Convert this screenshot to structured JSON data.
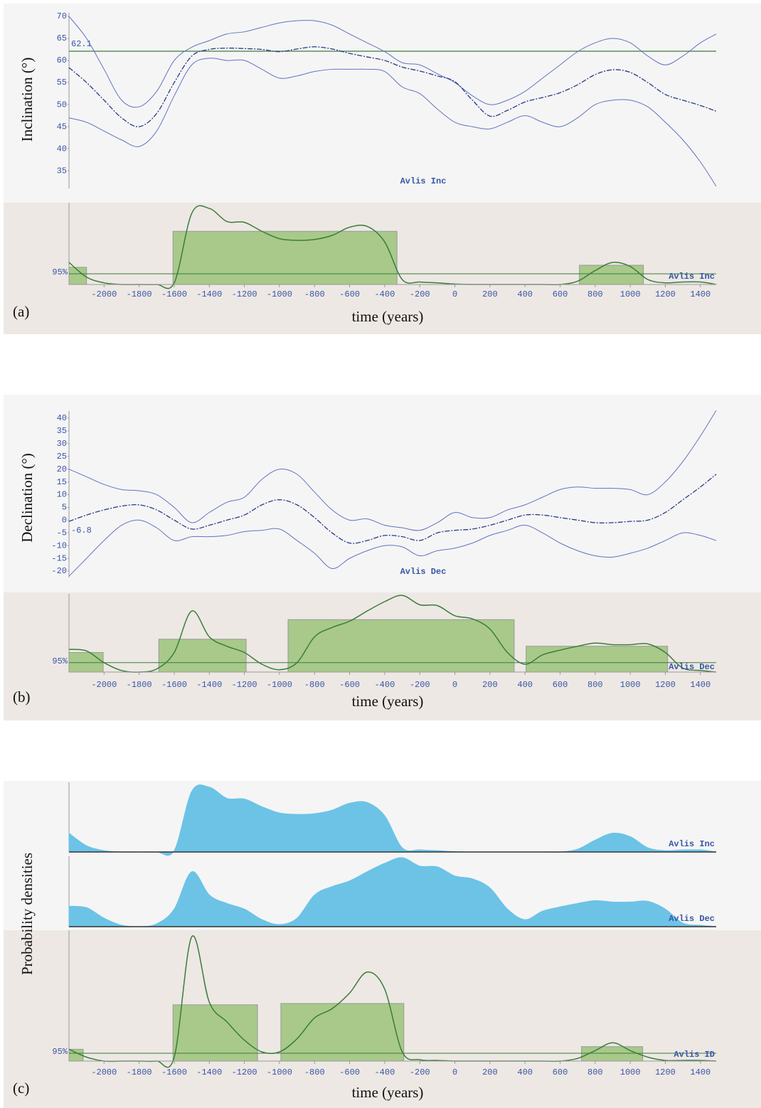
{
  "chart_data": [
    {
      "type": "line",
      "ylabel": "Inclination (°)",
      "xlim": [
        -2200,
        1490
      ],
      "ylim": [
        31,
        70.8
      ],
      "yticks": [
        35,
        40,
        45,
        50,
        55,
        60,
        65,
        70
      ],
      "reference": 62.1,
      "show_reference_line": true,
      "curve_label": "Avlis Inc",
      "x": [
        -2200,
        -2100,
        -2000,
        -1900,
        -1800,
        -1700,
        -1600,
        -1500,
        -1400,
        -1300,
        -1200,
        -1100,
        -1000,
        -900,
        -800,
        -700,
        -600,
        -500,
        -400,
        -300,
        -200,
        -100,
        0,
        100,
        200,
        300,
        400,
        500,
        600,
        700,
        800,
        900,
        1000,
        1100,
        1200,
        1300,
        1400,
        1490
      ],
      "series": [
        {
          "color": "#6272c4",
          "values": [
            70,
            65,
            58,
            51,
            49.5,
            53,
            60,
            63,
            64.5,
            66,
            66.5,
            67.5,
            68.5,
            69,
            69,
            68,
            66,
            64,
            62,
            59.5,
            59,
            57,
            55,
            52,
            50,
            51,
            53,
            56,
            59,
            62,
            64,
            65,
            64,
            61,
            59,
            61,
            64,
            66
          ]
        },
        {
          "color": "#2a3a8a",
          "values": [
            58.4,
            55,
            51,
            47,
            45,
            48,
            55,
            61,
            62.5,
            62.8,
            62.7,
            62.5,
            62,
            62.6,
            63.1,
            62.6,
            61.6,
            60.8,
            60,
            58.5,
            57.6,
            56.5,
            55.2,
            51,
            47.4,
            48.7,
            50.6,
            51.6,
            52.7,
            54.5,
            56.8,
            57.9,
            57.3,
            55,
            52.3,
            51,
            49.8,
            48.5
          ]
        },
        {
          "color": "#6272c4",
          "values": [
            47,
            46,
            44,
            42,
            40.5,
            44,
            52,
            59,
            60.5,
            60,
            60,
            58,
            56,
            56.5,
            57.5,
            58,
            58,
            58,
            57.5,
            54,
            52.5,
            49,
            46,
            45,
            44.5,
            46,
            47.5,
            46,
            45,
            47,
            50,
            51,
            51,
            49.5,
            46,
            42,
            37,
            31.5
          ]
        }
      ]
    },
    {
      "type": "hpd",
      "panel_label": "(a)",
      "xlabel": "time (years)",
      "xlim": [
        -2200,
        1490
      ],
      "ylim": [
        0,
        100
      ],
      "xticks": [
        -2000,
        -1800,
        -1600,
        -1400,
        -1200,
        -1000,
        -800,
        -600,
        -400,
        -200,
        0,
        200,
        400,
        600,
        800,
        1000,
        1200,
        1400
      ],
      "threshold": 13,
      "threshold_label": "95%",
      "curve_label": "Avlis Inc",
      "color": "#3a7d3a",
      "bar_color": "#a8c98a",
      "intervals": [
        {
          "start": -2200,
          "end": -2100,
          "height": 21
        },
        {
          "start": -1607,
          "end": -330,
          "height": 65
        },
        {
          "start": 710,
          "end": 1075,
          "height": 23.5
        }
      ],
      "x": [
        -2200,
        -2100,
        -2000,
        -1900,
        -1800,
        -1700,
        -1600,
        -1500,
        -1400,
        -1300,
        -1200,
        -1100,
        -1000,
        -900,
        -800,
        -700,
        -600,
        -500,
        -400,
        -300,
        -200,
        -100,
        0,
        100,
        200,
        300,
        400,
        500,
        600,
        700,
        800,
        900,
        1000,
        1100,
        1200,
        1300,
        1400,
        1490
      ],
      "values": [
        27,
        9,
        2,
        0,
        0,
        0,
        2,
        87,
        93,
        77,
        76,
        65,
        56,
        54,
        55,
        60,
        70,
        71,
        52,
        6,
        3,
        2,
        0.5,
        0,
        0,
        0,
        0,
        0,
        0,
        4,
        17,
        27,
        22,
        6,
        2,
        3,
        3,
        0
      ]
    },
    {
      "type": "line",
      "ylabel": "Declination (°)",
      "xlim": [
        -2200,
        1490
      ],
      "ylim": [
        -22.5,
        42.8
      ],
      "yticks": [
        -20,
        -15,
        -10,
        -5,
        0,
        5,
        10,
        15,
        20,
        25,
        30,
        35,
        40
      ],
      "reference": -6.8,
      "show_reference_line": false,
      "curve_label": "Avlis Dec",
      "x": [
        -2200,
        -2100,
        -2000,
        -1900,
        -1800,
        -1700,
        -1600,
        -1500,
        -1400,
        -1300,
        -1200,
        -1100,
        -1000,
        -900,
        -800,
        -700,
        -600,
        -500,
        -400,
        -300,
        -200,
        -100,
        0,
        100,
        200,
        300,
        400,
        500,
        600,
        700,
        800,
        900,
        1000,
        1100,
        1200,
        1300,
        1400,
        1490
      ],
      "series": [
        {
          "color": "#6272c4",
          "values": [
            20,
            17,
            14,
            12,
            11.5,
            10,
            5,
            -1,
            3,
            7,
            9,
            16,
            20,
            18,
            11,
            4,
            0,
            0.5,
            -2,
            -3,
            -4,
            -1,
            3,
            1,
            1,
            4,
            6,
            9,
            12,
            13,
            12.5,
            12.5,
            12,
            10,
            15,
            23,
            33,
            43
          ]
        },
        {
          "color": "#2a3a8a",
          "values": [
            -0.5,
            2,
            4,
            5.5,
            6,
            4,
            0,
            -3.5,
            -2,
            0,
            2,
            6,
            8,
            6,
            1,
            -5,
            -9,
            -8,
            -6,
            -6.5,
            -8,
            -5,
            -4,
            -3.5,
            -2,
            0,
            2,
            2,
            1,
            0,
            -1,
            -1,
            -0.5,
            0,
            3,
            8,
            13,
            18
          ]
        },
        {
          "color": "#6272c4",
          "values": [
            -22,
            -15,
            -8,
            -2,
            0,
            -3,
            -8,
            -6.5,
            -6.5,
            -6,
            -4.5,
            -4,
            -3.5,
            -8,
            -13,
            -19,
            -15,
            -12,
            -10,
            -10.5,
            -14,
            -12,
            -11,
            -9,
            -6,
            -4,
            -2,
            -5,
            -9,
            -12,
            -14,
            -14.5,
            -13,
            -11,
            -8,
            -5,
            -6,
            -8
          ]
        }
      ]
    },
    {
      "type": "hpd",
      "panel_label": "(b)",
      "xlabel": "time (years)",
      "xlim": [
        -2200,
        1490
      ],
      "ylim": [
        0,
        100
      ],
      "xticks": [
        -2000,
        -1800,
        -1600,
        -1400,
        -1200,
        -1000,
        -800,
        -600,
        -400,
        -200,
        0,
        200,
        400,
        600,
        800,
        1000,
        1200,
        1400
      ],
      "threshold": 12,
      "threshold_label": "95%",
      "curve_label": "Avlis Dec",
      "color": "#3a7d3a",
      "bar_color": "#a8c98a",
      "intervals": [
        {
          "start": -2200,
          "end": -2005,
          "height": 25
        },
        {
          "start": -1688,
          "end": -1190,
          "height": 42
        },
        {
          "start": -951,
          "end": 338,
          "height": 67
        },
        {
          "start": 406,
          "end": 1213,
          "height": 33
        }
      ],
      "x": [
        -2200,
        -2100,
        -2000,
        -1900,
        -1800,
        -1700,
        -1600,
        -1500,
        -1400,
        -1300,
        -1200,
        -1100,
        -1000,
        -900,
        -800,
        -700,
        -600,
        -500,
        -400,
        -300,
        -200,
        -100,
        0,
        100,
        200,
        300,
        400,
        500,
        600,
        700,
        800,
        900,
        1000,
        1100,
        1200,
        1300,
        1400,
        1490
      ],
      "values": [
        29,
        27,
        12,
        2,
        0,
        4,
        25,
        78,
        45,
        33,
        25,
        10,
        3,
        12,
        45,
        57,
        65,
        78,
        90,
        98,
        86,
        85,
        72,
        68,
        55,
        25,
        10,
        22,
        28,
        33,
        37,
        35,
        35,
        36,
        25,
        5,
        2,
        0
      ]
    },
    {
      "type": "area",
      "xlim": [
        -2200,
        1490
      ],
      "ylim": [
        0,
        100
      ],
      "curve_label": "Avlis Inc",
      "color": "#6cc3e6",
      "x": [
        -2200,
        -2100,
        -2000,
        -1900,
        -1800,
        -1700,
        -1600,
        -1500,
        -1400,
        -1300,
        -1200,
        -1100,
        -1000,
        -900,
        -800,
        -700,
        -600,
        -500,
        -400,
        -300,
        -200,
        -100,
        0,
        100,
        200,
        300,
        400,
        500,
        600,
        700,
        800,
        900,
        1000,
        1100,
        1200,
        1300,
        1400,
        1490
      ],
      "values": [
        27,
        9,
        2,
        0,
        0,
        0,
        2,
        87,
        93,
        77,
        76,
        65,
        56,
        54,
        55,
        60,
        70,
        71,
        52,
        6,
        3,
        2,
        0.5,
        0,
        0,
        0,
        0,
        0,
        0,
        4,
        17,
        27,
        22,
        6,
        2,
        3,
        3,
        0
      ]
    },
    {
      "type": "area",
      "xlim": [
        -2200,
        1490
      ],
      "ylim": [
        0,
        100
      ],
      "curve_label": "Avlis Dec",
      "color": "#6cc3e6",
      "x": [
        -2200,
        -2100,
        -2000,
        -1900,
        -1800,
        -1700,
        -1600,
        -1500,
        -1400,
        -1300,
        -1200,
        -1100,
        -1000,
        -900,
        -800,
        -700,
        -600,
        -500,
        -400,
        -300,
        -200,
        -100,
        0,
        100,
        200,
        300,
        400,
        500,
        600,
        700,
        800,
        900,
        1000,
        1100,
        1200,
        1300,
        1400,
        1490
      ],
      "values": [
        29,
        27,
        12,
        2,
        0,
        4,
        25,
        78,
        45,
        33,
        25,
        10,
        3,
        12,
        45,
        57,
        65,
        78,
        90,
        98,
        86,
        85,
        72,
        68,
        55,
        25,
        10,
        22,
        28,
        33,
        37,
        35,
        35,
        36,
        25,
        5,
        2,
        0
      ]
    },
    {
      "type": "hpd",
      "panel_label": "(c)",
      "ylabel": "Probability densities",
      "xlabel": "time (years)",
      "xlim": [
        -2200,
        1490
      ],
      "ylim": [
        0,
        100
      ],
      "xticks": [
        -2000,
        -1800,
        -1600,
        -1400,
        -1200,
        -1000,
        -800,
        -600,
        -400,
        -200,
        0,
        200,
        400,
        600,
        800,
        1000,
        1200,
        1400
      ],
      "threshold": 6,
      "threshold_label": "95%",
      "curve_label": "Avlis ID",
      "color": "#3a7d3a",
      "bar_color": "#a8c98a",
      "intervals": [
        {
          "start": -2200,
          "end": -2119,
          "height": 9
        },
        {
          "start": -1607,
          "end": -1125,
          "height": 43
        },
        {
          "start": -992,
          "end": -291,
          "height": 44
        },
        {
          "start": 722,
          "end": 1071,
          "height": 11
        }
      ],
      "x": [
        -2200,
        -2100,
        -2000,
        -1900,
        -1800,
        -1700,
        -1600,
        -1500,
        -1400,
        -1300,
        -1200,
        -1100,
        -1000,
        -900,
        -800,
        -700,
        -600,
        -500,
        -400,
        -300,
        -200,
        -100,
        0,
        100,
        200,
        300,
        400,
        500,
        600,
        700,
        800,
        900,
        1000,
        1100,
        1200,
        1300,
        1400,
        1490
      ],
      "values": [
        9,
        3,
        0,
        0,
        0,
        0,
        3,
        95,
        45,
        30,
        16,
        7,
        7,
        17,
        33,
        40,
        52,
        68,
        55,
        7,
        1,
        0.5,
        0,
        0,
        0,
        0,
        0,
        0,
        0,
        2,
        8,
        14,
        8,
        3,
        0.5,
        0.5,
        0.5,
        0
      ]
    }
  ]
}
